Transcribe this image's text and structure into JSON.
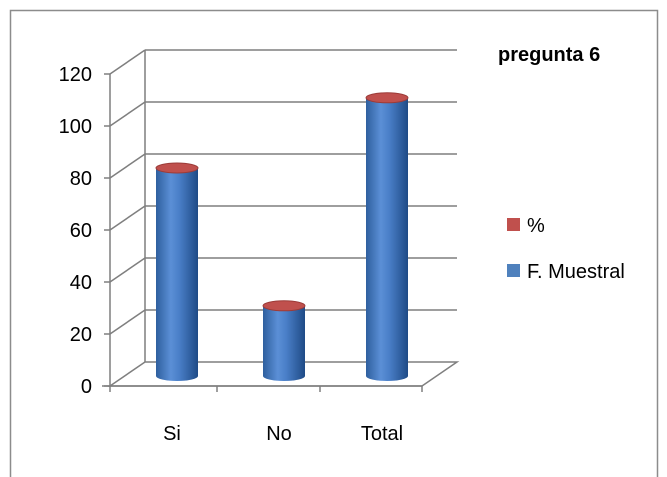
{
  "chart_data": {
    "type": "bar",
    "title": "pregunta  6",
    "xlabel": "",
    "ylabel": "",
    "categories": [
      "Si",
      "No",
      "Total"
    ],
    "series": [
      {
        "name": "%",
        "values": [
          null,
          null,
          null
        ],
        "color": "#c0504d"
      },
      {
        "name": "F. Muestral",
        "values": [
          80,
          27,
          107
        ],
        "color": "#4f81bd"
      }
    ],
    "ylim": [
      0,
      120
    ],
    "yticks": [
      0,
      20,
      40,
      60,
      80,
      100,
      120
    ],
    "grid": true,
    "legend_position": "right",
    "style": "3d-cylinder"
  }
}
